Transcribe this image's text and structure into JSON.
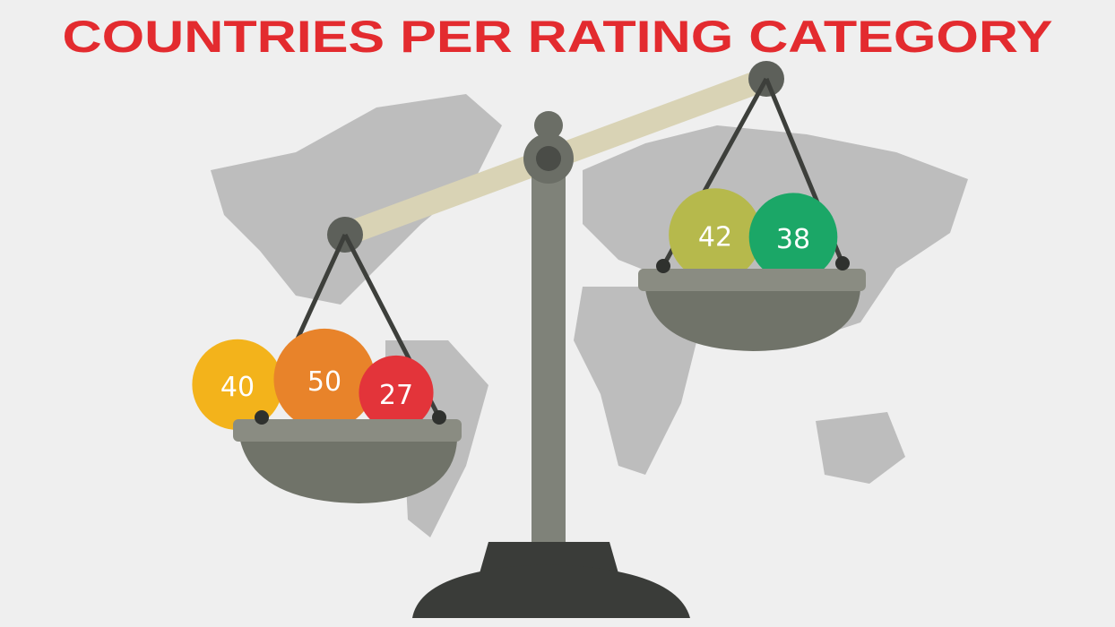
{
  "title": "COUNTRIES PER RATING CATEGORY",
  "left_pan": {
    "bubbles": [
      {
        "value": 40,
        "color": "#f3b31b"
      },
      {
        "value": 50,
        "color": "#e8832a"
      },
      {
        "value": 27,
        "color": "#e3343a"
      }
    ]
  },
  "right_pan": {
    "bubbles": [
      {
        "value": 42,
        "color": "#b6b94c"
      },
      {
        "value": 38,
        "color": "#1ba767"
      }
    ]
  }
}
